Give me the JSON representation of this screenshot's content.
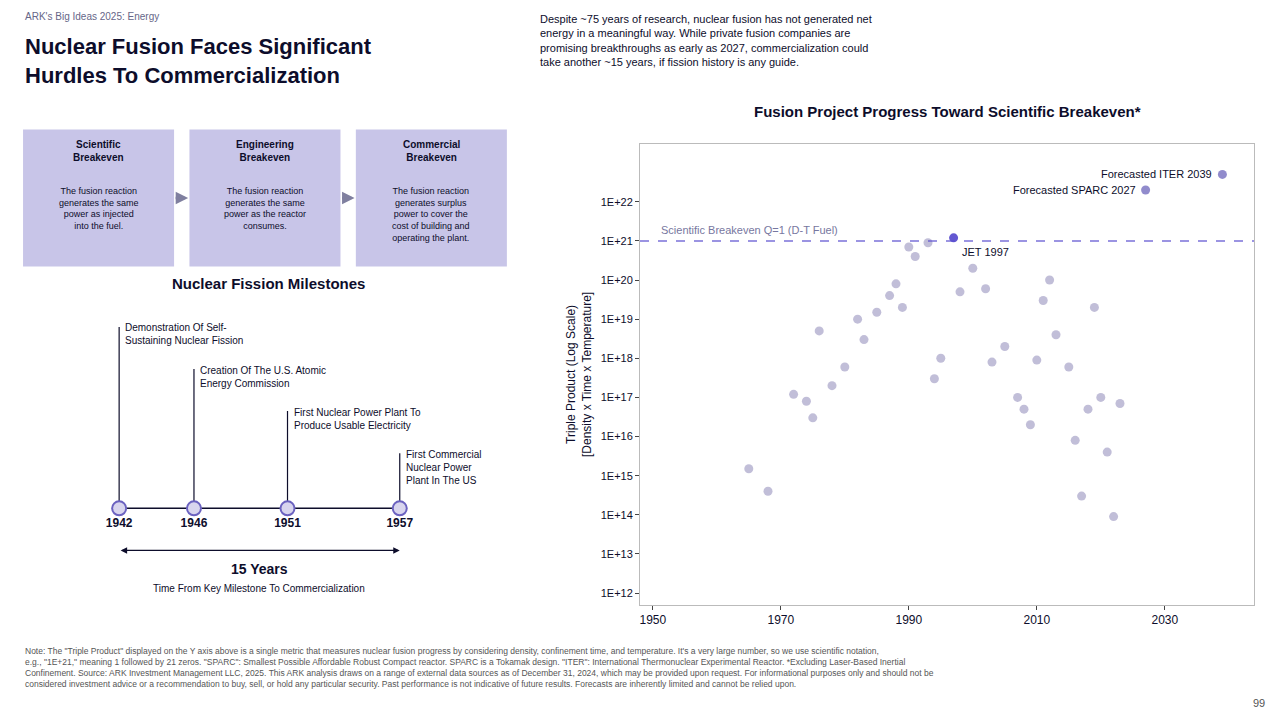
{
  "title": "Nuclear Fusion Faces Significant\nHurdles To Commercialization",
  "subtitle": "ARK's Big Ideas 2025: Energy",
  "annotations": [
    {
      "text": "Despite ~75 years of research, nuclear fusion has not generated net\nenergy in a meaningful way. While private fusion companies are\npromising breakthroughs as early as 2027, commercialization could\ntake another ~15 years, if fission history is any guide."
    },
    {
      "title": "Scientific\nBreakeven",
      "text": "The fusion reaction\ngenerates the same\npower as injected\ninto the fuel.",
      "color": "#c8c5e8"
    },
    {
      "title": "Engineering\nBreakeven",
      "text": "The fusion reaction\ngenerates the same\npower as the reactor\nconsumes.",
      "color": "#c8c5e8"
    },
    {
      "title": "Commercial\nBreakeven",
      "text": "The fusion reaction\ngenerates surplus\npower to cover the\ncost of building and\noperating the plant.",
      "color": "#c8c5e8"
    },
    {
      "text": "Note: The \"Triple Product\" displayed on the Y axis above is a single metric that measures nuclear fusion progress by considering density, confinement time, and temperature. It's a very large number, so we use scientific notation, e.g., \"1E+21,\" meaning 1 followed by 21 zeros. \"SPARC\": Smallest Possible Affordable Robust Compact reactor. SPARC is a Tokamak design. \"ITER\": International Thermonuclear Experimental Reactor. *Excluding Laser-Based Inertial Confinement. Source: ARK Investment Management LLC, 2025. This ARK analysis draws on a range of external data sources as of December 31, 2024, which may be provided upon request. For informational purposes only and should not be considered investment advice or a recommendation to buy, sell, or hold any particular security. Past performance is not indicative of future results. Forecasts are inherently limited and cannot be relied upon."
    },
    {
      "text": "99"
    }
  ],
  "chart_data": [
    {
      "type": "scatter",
      "title": "Fusion Project Progress Toward Scientific Breakeven*",
      "y_label": "Triple Product (Log Scale)\n[Density x Time x Temperature]",
      "x": [
        1965,
        1968,
        1972,
        1974,
        1975,
        1976,
        1978,
        1980,
        1982,
        1983,
        1985,
        1987,
        1988,
        1989,
        1990,
        1991,
        1993,
        1994,
        1995,
        1998,
        2000,
        2002,
        2003,
        2005,
        2007,
        2008,
        2009,
        2010,
        2011,
        2012,
        2013,
        2015,
        2016,
        2017,
        2018,
        2019,
        2020,
        2021,
        2022,
        2023,
        1997,
        2027,
        2039
      ],
      "values": [
        1500000000000000.0,
        400000000000000.0,
        1.2e+17,
        8e+16,
        3e+16,
        5e+18,
        2e+17,
        6e+17,
        1e+19,
        3e+18,
        1.5e+19,
        4e+19,
        8e+19,
        2e+19,
        7e+20,
        4e+20,
        9e+20,
        3e+17,
        1e+18,
        5e+19,
        2e+20,
        6e+19,
        8e+17,
        2e+18,
        1e+17,
        5e+16,
        2e+16,
        9e+17,
        3e+19,
        1e+20,
        4e+18,
        6e+17,
        8000000000000000.0,
        300000000000000.0,
        5e+16,
        2e+19,
        1e+17,
        4000000000000000.0,
        90000000000000.0,
        7e+16,
        1.2e+21,
        2e+22,
        5e+22
      ],
      "colors": [
        "#bebad6",
        "#bebad6",
        "#bebad6",
        "#bebad6",
        "#bebad6",
        "#bebad6",
        "#bebad6",
        "#bebad6",
        "#bebad6",
        "#bebad6",
        "#bebad6",
        "#bebad6",
        "#bebad6",
        "#bebad6",
        "#bebad6",
        "#bebad6",
        "#bebad6",
        "#bebad6",
        "#bebad6",
        "#bebad6",
        "#bebad6",
        "#bebad6",
        "#bebad6",
        "#bebad6",
        "#bebad6",
        "#bebad6",
        "#bebad6",
        "#bebad6",
        "#bebad6",
        "#bebad6",
        "#bebad6",
        "#bebad6",
        "#bebad6",
        "#bebad6",
        "#bebad6",
        "#bebad6",
        "#bebad6",
        "#bebad6",
        "#bebad6",
        "#bebad6",
        "#5b4fcf",
        "#8b85c9",
        "#8b85c9"
      ],
      "log": "y",
      "grid": false,
      "xlim": [
        1948,
        2044
      ],
      "xticks": [
        1950,
        1970,
        1990,
        2010,
        2030
      ],
      "ylim": [
        500000000000.0,
        3e+23
      ],
      "yticks": [
        {
          "value": 1000000000000.0,
          "label": "1E+12"
        },
        {
          "value": 10000000000000.0,
          "label": "1E+13"
        },
        {
          "value": 100000000000000.0,
          "label": "1E+14"
        },
        {
          "value": 1000000000000000.0,
          "label": "1E+15"
        },
        {
          "value": 1e+16,
          "label": "1E+16"
        },
        {
          "value": 1e+17,
          "label": "1E+17"
        },
        {
          "value": 1e+18,
          "label": "1E+18"
        },
        {
          "value": 1e+19,
          "label": "1E+19"
        },
        {
          "value": 1e+20,
          "label": "1E+20"
        },
        {
          "value": 1e+21,
          "label": "1E+21"
        },
        {
          "value": 1e+22,
          "label": "1E+22"
        }
      ],
      "annotations": [
        {
          "text": "JET 1997",
          "x": 1997,
          "y": 1.2e+21
        },
        {
          "text": "Forecasted SPARC 2027",
          "x": 2027,
          "y": 2e+22
        },
        {
          "text": "Forecasted ITER 2039",
          "x": 2039,
          "y": 5e+22
        },
        {
          "text": "Scientific Breakeven Q=1 (D-T Fuel)",
          "x": 1951,
          "y": 1e+21,
          "line_style": "dashed",
          "color": "#5b4fcf"
        }
      ]
    },
    {
      "type": "timeline",
      "title": "Nuclear Fission Milestones",
      "x": [
        1942,
        1946,
        1951,
        1957
      ],
      "labels": [
        "Demonstration Of Self-\nSustaining Nuclear Fission",
        "Creation Of The U.S. Atomic\nEnergy Commission",
        "First Nuclear Power Plant To\nProduce Usable Electricity",
        "First Commercial\nNuclear Power\nPlant In The US"
      ],
      "xlim": [
        1937,
        1963
      ],
      "data_labels": true,
      "tick_labels": false,
      "annotations": [
        {
          "text": "15 Years"
        },
        {
          "text": "Time From Key Milestone To Commercialization"
        }
      ]
    }
  ]
}
